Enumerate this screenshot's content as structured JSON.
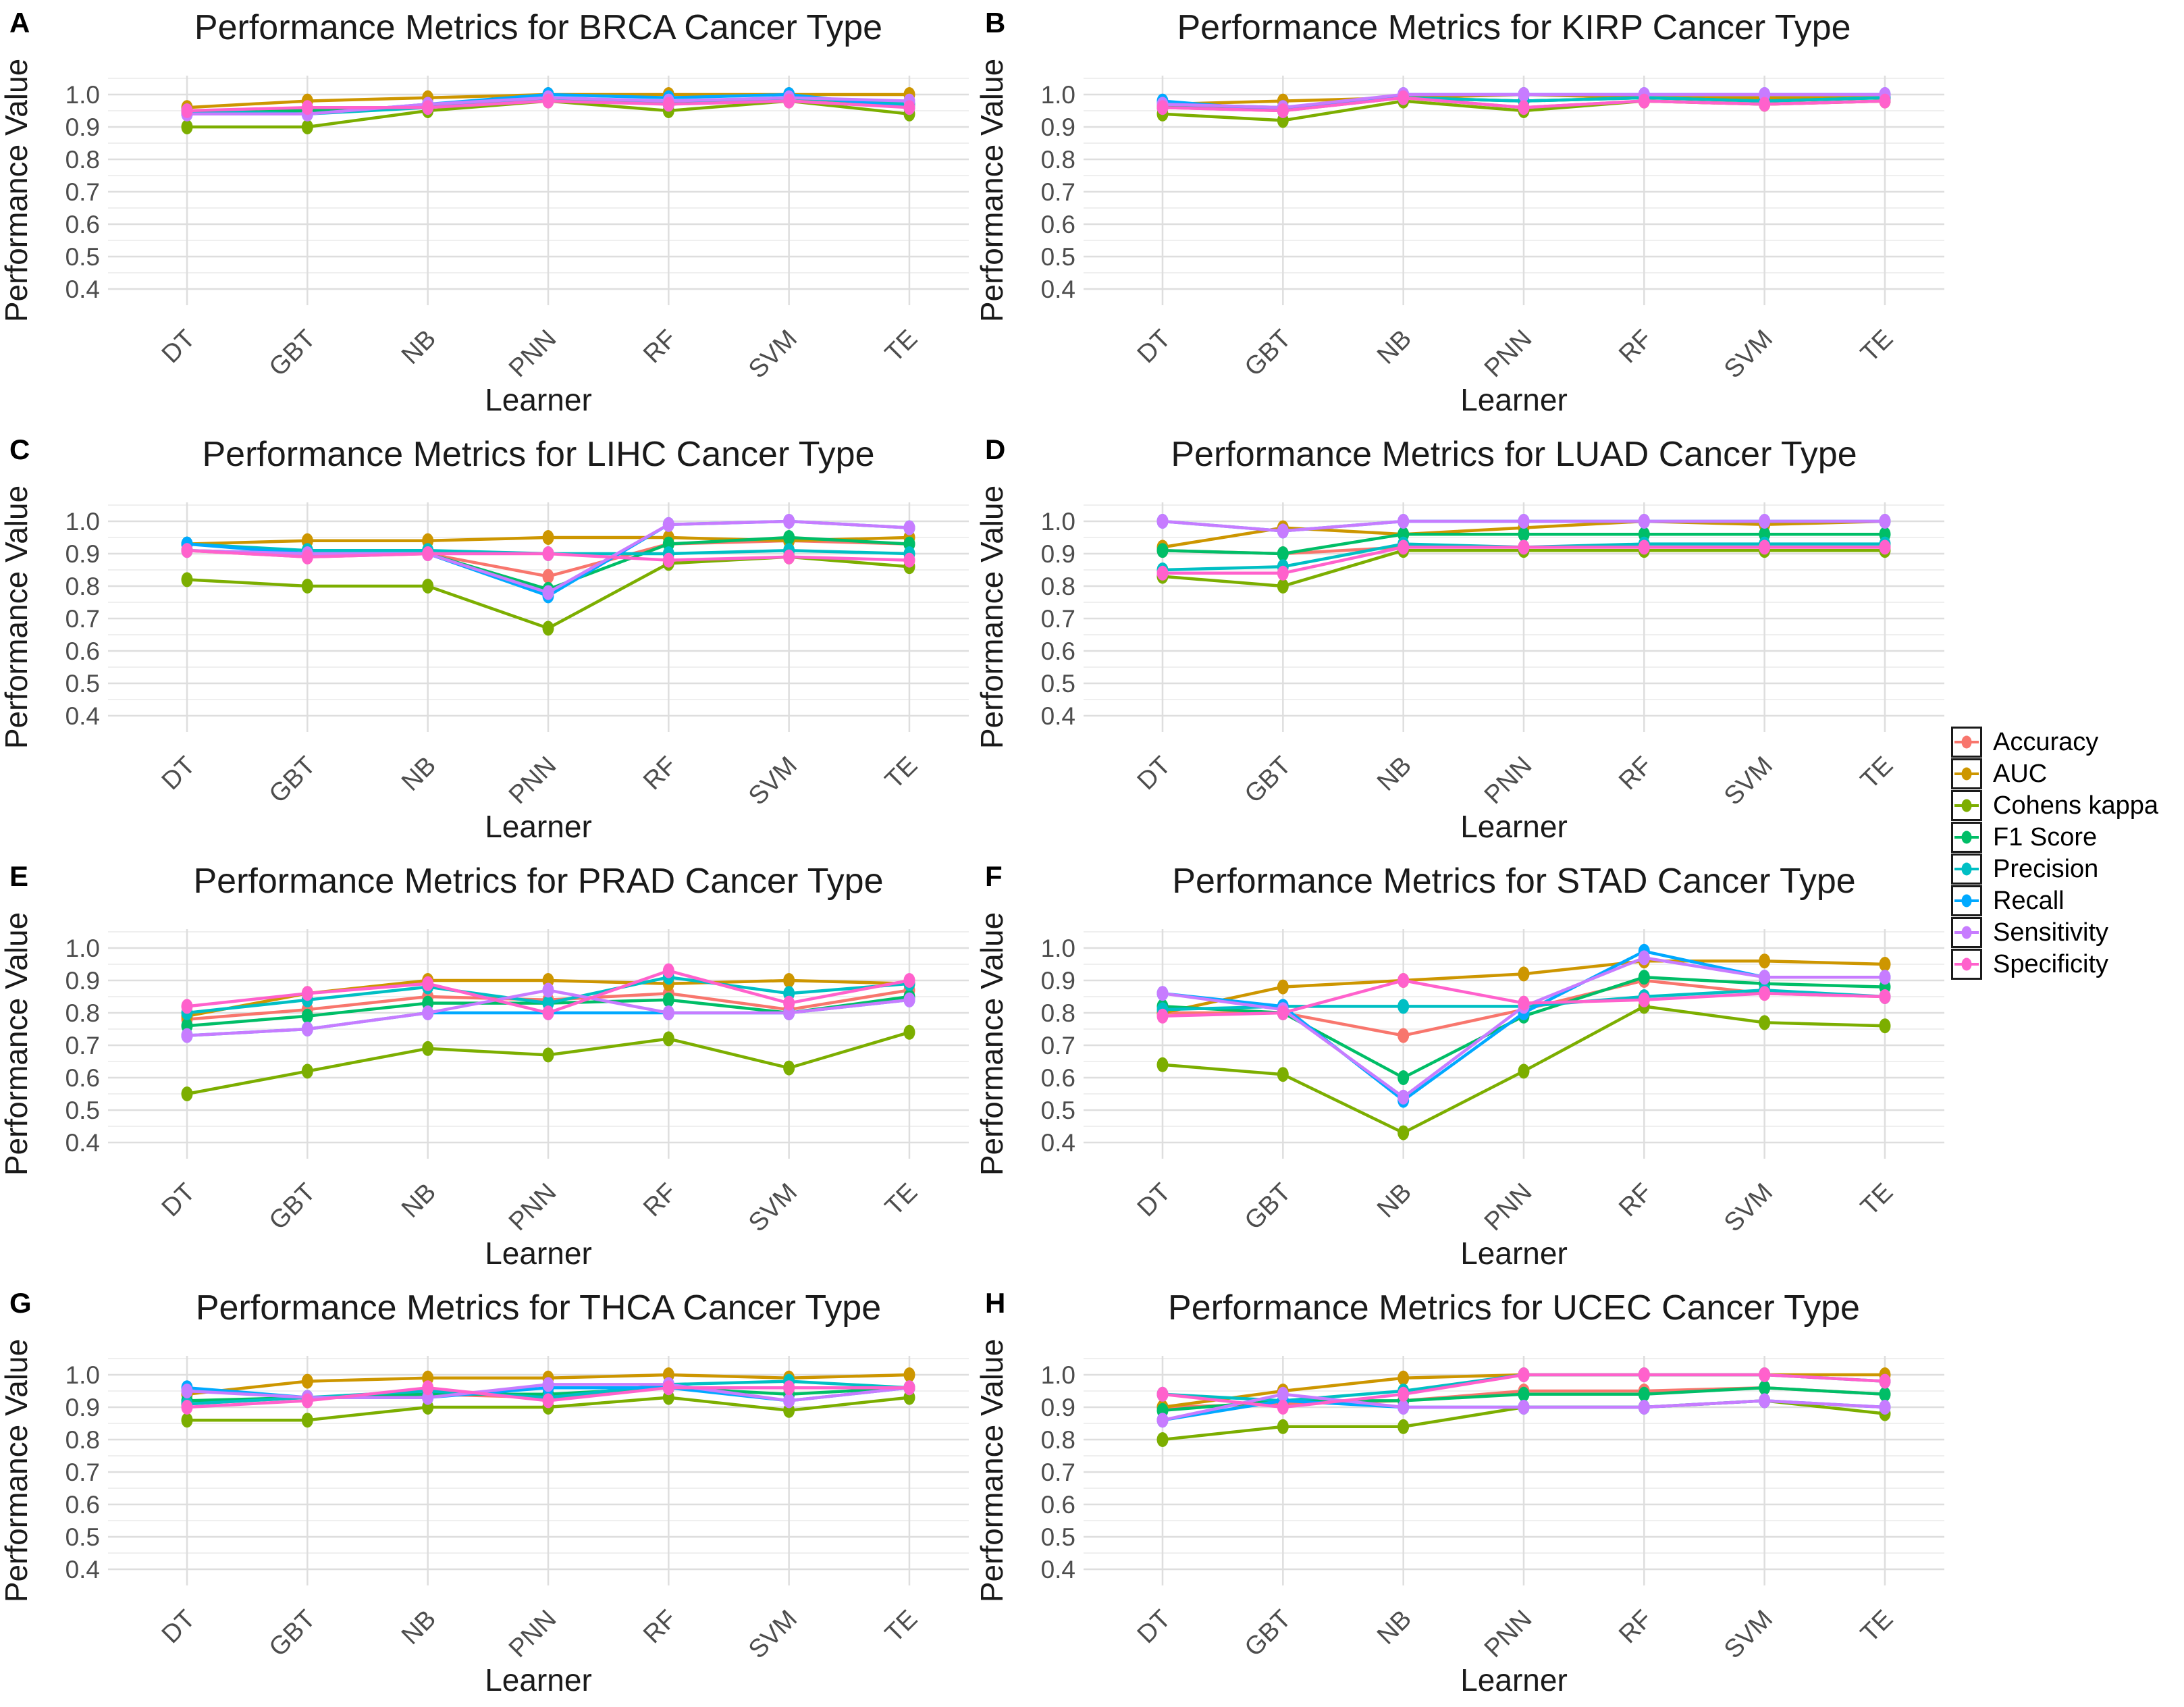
{
  "figure": {
    "xlabel": "Learner",
    "ylabel": "Performance Value",
    "categories": [
      "DT",
      "GBT",
      "NB",
      "PNN",
      "RF",
      "SVM",
      "TE"
    ],
    "ytick_labels": [
      "1.0",
      "0.9",
      "0.8",
      "0.7",
      "0.6",
      "0.5",
      "0.4"
    ],
    "ytick_values": [
      1.0,
      0.9,
      0.8,
      0.7,
      0.6,
      0.5,
      0.4
    ],
    "ylim": [
      0.35,
      1.06
    ],
    "grid": {
      "major_color": "#dedede",
      "minor_color": "#efefef",
      "background": "#ffffff"
    },
    "text_colors": {
      "title": "#1a1a1a",
      "axis_label": "#1a1a1a",
      "tick_label": "#4d4d4d",
      "panel_letter": "#000000"
    }
  },
  "legend": {
    "entries": [
      {
        "label": "Accuracy",
        "color": "#F8766D"
      },
      {
        "label": "AUC",
        "color": "#CD9600"
      },
      {
        "label": "Cohens kappa",
        "color": "#7CAE00"
      },
      {
        "label": "F1 Score",
        "color": "#00BE67"
      },
      {
        "label": "Precision",
        "color": "#00BFC4"
      },
      {
        "label": "Recall",
        "color": "#00A9FF"
      },
      {
        "label": "Sensitivity",
        "color": "#C77CFF"
      },
      {
        "label": "Specificity",
        "color": "#FF61CC"
      }
    ]
  },
  "chart_data": [
    {
      "panel": "A",
      "type": "line",
      "title": "Performance Metrics for BRCA Cancer Type",
      "xlabel": "Learner",
      "ylabel": "Performance Value",
      "categories": [
        "DT",
        "GBT",
        "NB",
        "PNN",
        "RF",
        "SVM",
        "TE"
      ],
      "ylim": [
        0.35,
        1.06
      ],
      "legend_position": "none",
      "series": [
        {
          "name": "Accuracy",
          "values": [
            0.95,
            0.95,
            0.96,
            0.99,
            0.97,
            0.99,
            0.96
          ]
        },
        {
          "name": "AUC",
          "values": [
            0.96,
            0.98,
            0.99,
            1.0,
            1.0,
            1.0,
            1.0
          ]
        },
        {
          "name": "Cohens kappa",
          "values": [
            0.9,
            0.9,
            0.95,
            0.98,
            0.95,
            0.98,
            0.94
          ]
        },
        {
          "name": "F1 Score",
          "values": [
            0.95,
            0.95,
            0.96,
            0.99,
            0.97,
            0.99,
            0.97
          ]
        },
        {
          "name": "Precision",
          "values": [
            0.95,
            0.94,
            0.96,
            0.99,
            0.97,
            0.99,
            0.97
          ]
        },
        {
          "name": "Recall",
          "values": [
            0.94,
            0.94,
            0.97,
            1.0,
            0.99,
            1.0,
            0.96
          ]
        },
        {
          "name": "Sensitivity",
          "values": [
            0.94,
            0.94,
            0.97,
            0.99,
            0.98,
            0.99,
            0.98
          ]
        },
        {
          "name": "Specificity",
          "values": [
            0.95,
            0.96,
            0.96,
            0.98,
            0.97,
            0.98,
            0.96
          ]
        }
      ]
    },
    {
      "panel": "B",
      "type": "line",
      "title": "Performance Metrics for KIRP Cancer Type",
      "xlabel": "Learner",
      "ylabel": "Performance Value",
      "categories": [
        "DT",
        "GBT",
        "NB",
        "PNN",
        "RF",
        "SVM",
        "TE"
      ],
      "ylim": [
        0.35,
        1.06
      ],
      "legend_position": "none",
      "series": [
        {
          "name": "Accuracy",
          "values": [
            0.96,
            0.95,
            0.99,
            0.96,
            0.98,
            0.97,
            0.98
          ]
        },
        {
          "name": "AUC",
          "values": [
            0.97,
            0.98,
            0.99,
            1.0,
            0.99,
            0.99,
            0.99
          ]
        },
        {
          "name": "Cohens kappa",
          "values": [
            0.94,
            0.92,
            0.98,
            0.95,
            0.98,
            0.97,
            0.98
          ]
        },
        {
          "name": "F1 Score",
          "values": [
            0.96,
            0.96,
            0.99,
            0.98,
            0.99,
            0.98,
            0.99
          ]
        },
        {
          "name": "Precision",
          "values": [
            0.97,
            0.96,
            0.99,
            0.98,
            0.99,
            0.98,
            0.99
          ]
        },
        {
          "name": "Recall",
          "values": [
            0.98,
            0.95,
            1.0,
            1.0,
            1.0,
            1.0,
            1.0
          ]
        },
        {
          "name": "Sensitivity",
          "values": [
            0.97,
            0.96,
            1.0,
            1.0,
            1.0,
            1.0,
            1.0
          ]
        },
        {
          "name": "Specificity",
          "values": [
            0.96,
            0.95,
            0.99,
            0.96,
            0.98,
            0.97,
            0.98
          ]
        }
      ]
    },
    {
      "panel": "C",
      "type": "line",
      "title": "Performance Metrics for LIHC Cancer Type",
      "xlabel": "Learner",
      "ylabel": "Performance Value",
      "categories": [
        "DT",
        "GBT",
        "NB",
        "PNN",
        "RF",
        "SVM",
        "TE"
      ],
      "ylim": [
        0.35,
        1.06
      ],
      "legend_position": "none",
      "series": [
        {
          "name": "Accuracy",
          "values": [
            0.91,
            0.89,
            0.9,
            0.83,
            0.93,
            0.94,
            0.93
          ]
        },
        {
          "name": "AUC",
          "values": [
            0.93,
            0.94,
            0.94,
            0.95,
            0.95,
            0.94,
            0.95
          ]
        },
        {
          "name": "Cohens kappa",
          "values": [
            0.82,
            0.8,
            0.8,
            0.67,
            0.87,
            0.89,
            0.86
          ]
        },
        {
          "name": "F1 Score",
          "values": [
            0.91,
            0.9,
            0.9,
            0.79,
            0.93,
            0.95,
            0.93
          ]
        },
        {
          "name": "Precision",
          "values": [
            0.93,
            0.91,
            0.91,
            0.9,
            0.9,
            0.91,
            0.9
          ]
        },
        {
          "name": "Recall",
          "values": [
            0.93,
            0.9,
            0.9,
            0.77,
            0.99,
            1.0,
            0.98
          ]
        },
        {
          "name": "Sensitivity",
          "values": [
            0.91,
            0.9,
            0.9,
            0.78,
            0.99,
            1.0,
            0.98
          ]
        },
        {
          "name": "Specificity",
          "values": [
            0.91,
            0.89,
            0.9,
            0.9,
            0.88,
            0.89,
            0.88
          ]
        }
      ]
    },
    {
      "panel": "D",
      "type": "line",
      "title": "Performance Metrics for LUAD Cancer Type",
      "xlabel": "Learner",
      "ylabel": "Performance Value",
      "categories": [
        "DT",
        "GBT",
        "NB",
        "PNN",
        "RF",
        "SVM",
        "TE"
      ],
      "ylim": [
        0.35,
        1.06
      ],
      "legend_position": "none",
      "series": [
        {
          "name": "Accuracy",
          "values": [
            0.91,
            0.9,
            0.92,
            0.92,
            0.92,
            0.92,
            0.92
          ]
        },
        {
          "name": "AUC",
          "values": [
            0.92,
            0.98,
            0.96,
            0.98,
            1.0,
            0.99,
            1.0
          ]
        },
        {
          "name": "Cohens kappa",
          "values": [
            0.83,
            0.8,
            0.91,
            0.91,
            0.91,
            0.91,
            0.91
          ]
        },
        {
          "name": "F1 Score",
          "values": [
            0.91,
            0.9,
            0.96,
            0.96,
            0.96,
            0.96,
            0.96
          ]
        },
        {
          "name": "Precision",
          "values": [
            0.85,
            0.86,
            0.93,
            0.92,
            0.93,
            0.93,
            0.93
          ]
        },
        {
          "name": "Recall",
          "values": [
            1.0,
            0.97,
            1.0,
            1.0,
            1.0,
            1.0,
            1.0
          ]
        },
        {
          "name": "Sensitivity",
          "values": [
            1.0,
            0.97,
            1.0,
            1.0,
            1.0,
            1.0,
            1.0
          ]
        },
        {
          "name": "Specificity",
          "values": [
            0.84,
            0.84,
            0.92,
            0.92,
            0.92,
            0.92,
            0.92
          ]
        }
      ]
    },
    {
      "panel": "E",
      "type": "line",
      "title": "Performance Metrics for PRAD Cancer Type",
      "xlabel": "Learner",
      "ylabel": "Performance Value",
      "categories": [
        "DT",
        "GBT",
        "NB",
        "PNN",
        "RF",
        "SVM",
        "TE"
      ],
      "ylim": [
        0.35,
        1.06
      ],
      "legend_position": "none",
      "series": [
        {
          "name": "Accuracy",
          "values": [
            0.78,
            0.81,
            0.85,
            0.84,
            0.86,
            0.81,
            0.87
          ]
        },
        {
          "name": "AUC",
          "values": [
            0.79,
            0.86,
            0.9,
            0.9,
            0.89,
            0.9,
            0.89
          ]
        },
        {
          "name": "Cohens kappa",
          "values": [
            0.55,
            0.62,
            0.69,
            0.67,
            0.72,
            0.63,
            0.74
          ]
        },
        {
          "name": "F1 Score",
          "values": [
            0.76,
            0.79,
            0.83,
            0.83,
            0.84,
            0.8,
            0.85
          ]
        },
        {
          "name": "Precision",
          "values": [
            0.8,
            0.84,
            0.88,
            0.83,
            0.91,
            0.86,
            0.89
          ]
        },
        {
          "name": "Recall",
          "values": [
            0.73,
            0.75,
            0.8,
            0.8,
            0.8,
            0.8,
            0.84
          ]
        },
        {
          "name": "Sensitivity",
          "values": [
            0.73,
            0.75,
            0.8,
            0.87,
            0.8,
            0.8,
            0.84
          ]
        },
        {
          "name": "Specificity",
          "values": [
            0.82,
            0.86,
            0.89,
            0.8,
            0.93,
            0.83,
            0.9
          ]
        }
      ]
    },
    {
      "panel": "F",
      "type": "line",
      "title": "Performance Metrics for STAD Cancer Type",
      "xlabel": "Learner",
      "ylabel": "Performance Value",
      "categories": [
        "DT",
        "GBT",
        "NB",
        "PNN",
        "RF",
        "SVM",
        "TE"
      ],
      "ylim": [
        0.35,
        1.06
      ],
      "legend_position": "none",
      "series": [
        {
          "name": "Accuracy",
          "values": [
            0.8,
            0.8,
            0.73,
            0.81,
            0.9,
            0.86,
            0.85
          ]
        },
        {
          "name": "AUC",
          "values": [
            0.8,
            0.88,
            0.9,
            0.92,
            0.96,
            0.96,
            0.95
          ]
        },
        {
          "name": "Cohens kappa",
          "values": [
            0.64,
            0.61,
            0.43,
            0.62,
            0.82,
            0.77,
            0.76
          ]
        },
        {
          "name": "F1 Score",
          "values": [
            0.82,
            0.8,
            0.6,
            0.79,
            0.91,
            0.89,
            0.88
          ]
        },
        {
          "name": "Precision",
          "values": [
            0.81,
            0.82,
            0.82,
            0.82,
            0.85,
            0.87,
            0.85
          ]
        },
        {
          "name": "Recall",
          "values": [
            0.86,
            0.82,
            0.53,
            0.8,
            0.99,
            0.91,
            0.91
          ]
        },
        {
          "name": "Sensitivity",
          "values": [
            0.86,
            0.81,
            0.54,
            0.82,
            0.97,
            0.91,
            0.91
          ]
        },
        {
          "name": "Specificity",
          "values": [
            0.79,
            0.8,
            0.9,
            0.83,
            0.84,
            0.86,
            0.85
          ]
        }
      ]
    },
    {
      "panel": "G",
      "type": "line",
      "title": "Performance Metrics for THCA Cancer Type",
      "xlabel": "Learner",
      "ylabel": "Performance Value",
      "categories": [
        "DT",
        "GBT",
        "NB",
        "PNN",
        "RF",
        "SVM",
        "TE"
      ],
      "ylim": [
        0.35,
        1.06
      ],
      "legend_position": "none",
      "series": [
        {
          "name": "Accuracy",
          "values": [
            0.91,
            0.93,
            0.94,
            0.93,
            0.96,
            0.96,
            0.96
          ]
        },
        {
          "name": "AUC",
          "values": [
            0.94,
            0.98,
            0.99,
            0.99,
            1.0,
            0.99,
            1.0
          ]
        },
        {
          "name": "Cohens kappa",
          "values": [
            0.86,
            0.86,
            0.9,
            0.9,
            0.93,
            0.89,
            0.93
          ]
        },
        {
          "name": "F1 Score",
          "values": [
            0.92,
            0.93,
            0.94,
            0.94,
            0.96,
            0.94,
            0.96
          ]
        },
        {
          "name": "Precision",
          "values": [
            0.91,
            0.93,
            0.95,
            0.93,
            0.97,
            0.98,
            0.96
          ]
        },
        {
          "name": "Recall",
          "values": [
            0.96,
            0.93,
            0.93,
            0.96,
            0.96,
            0.92,
            0.96
          ]
        },
        {
          "name": "Sensitivity",
          "values": [
            0.95,
            0.93,
            0.93,
            0.97,
            0.97,
            0.92,
            0.96
          ]
        },
        {
          "name": "Specificity",
          "values": [
            0.9,
            0.92,
            0.96,
            0.92,
            0.96,
            0.96,
            0.96
          ]
        }
      ]
    },
    {
      "panel": "H",
      "type": "line",
      "title": "Performance Metrics for UCEC Cancer Type",
      "xlabel": "Learner",
      "ylabel": "Performance Value",
      "categories": [
        "DT",
        "GBT",
        "NB",
        "PNN",
        "RF",
        "SVM",
        "TE"
      ],
      "ylim": [
        0.35,
        1.06
      ],
      "legend_position": "none",
      "series": [
        {
          "name": "Accuracy",
          "values": [
            0.9,
            0.91,
            0.92,
            0.95,
            0.95,
            0.96,
            0.94
          ]
        },
        {
          "name": "AUC",
          "values": [
            0.9,
            0.95,
            0.99,
            1.0,
            1.0,
            1.0,
            1.0
          ]
        },
        {
          "name": "Cohens kappa",
          "values": [
            0.8,
            0.84,
            0.84,
            0.9,
            0.9,
            0.92,
            0.88
          ]
        },
        {
          "name": "F1 Score",
          "values": [
            0.89,
            0.92,
            0.92,
            0.94,
            0.94,
            0.96,
            0.94
          ]
        },
        {
          "name": "Precision",
          "values": [
            0.94,
            0.92,
            0.95,
            1.0,
            1.0,
            1.0,
            0.98
          ]
        },
        {
          "name": "Recall",
          "values": [
            0.86,
            0.92,
            0.9,
            0.9,
            0.9,
            0.92,
            0.9
          ]
        },
        {
          "name": "Sensitivity",
          "values": [
            0.86,
            0.94,
            0.9,
            0.9,
            0.9,
            0.92,
            0.9
          ]
        },
        {
          "name": "Specificity",
          "values": [
            0.94,
            0.9,
            0.94,
            1.0,
            1.0,
            1.0,
            0.98
          ]
        }
      ]
    }
  ]
}
